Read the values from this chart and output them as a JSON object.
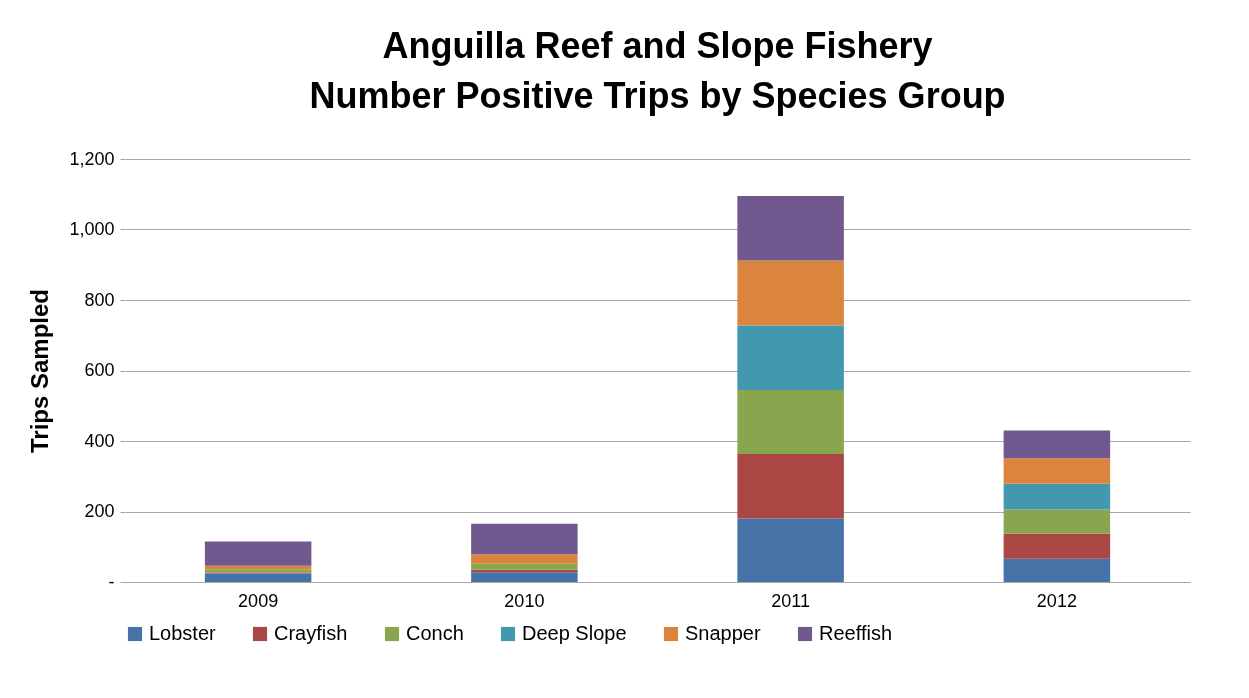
{
  "chart_data": {
    "type": "bar",
    "title": [
      "Anguilla Reef and Slope Fishery",
      "Number Positive Trips by Species Group"
    ],
    "ylabel": "Trips Sampled",
    "categories": [
      "2009",
      "2010",
      "2011",
      "2012"
    ],
    "series": [
      {
        "name": "Lobster",
        "color": "#4572a7",
        "values": [
          24,
          28,
          180,
          66
        ]
      },
      {
        "name": "Crayfish",
        "color": "#aa4643",
        "values": [
          3,
          7,
          183,
          71
        ]
      },
      {
        "name": "Conch",
        "color": "#89a54e",
        "values": [
          9,
          17,
          182,
          69
        ]
      },
      {
        "name": "Deep Slope",
        "color": "#4198af",
        "values": [
          0,
          0,
          183,
          73
        ]
      },
      {
        "name": "Snapper",
        "color": "#db843d",
        "values": [
          10,
          27,
          184,
          72
        ]
      },
      {
        "name": "Reeffish",
        "color": "#71588f",
        "values": [
          69,
          86,
          183,
          79
        ]
      }
    ],
    "stacked": true,
    "ylim": [
      0,
      1200
    ],
    "yticks": [
      {
        "value": 0,
        "label": "-"
      },
      200,
      400,
      600,
      800,
      {
        "value": 1000,
        "label": "1,000"
      },
      {
        "value": 1200,
        "label": "1,200"
      }
    ],
    "grid": "y",
    "legend": "bottom"
  }
}
